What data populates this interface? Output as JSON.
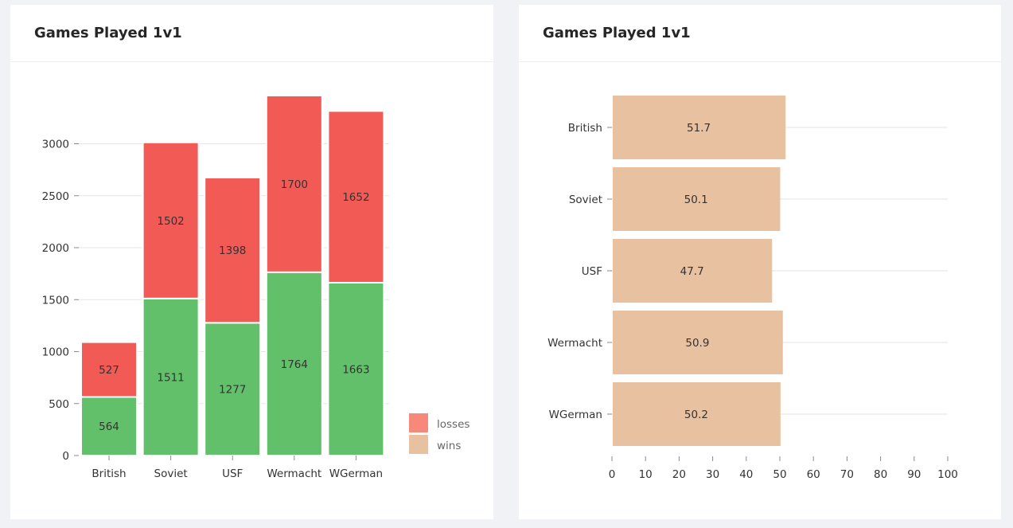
{
  "cards": [
    {
      "title": "Games Played 1v1"
    },
    {
      "title": "Games Played 1v1"
    }
  ],
  "chart_data": [
    {
      "type": "bar",
      "stacked": true,
      "title": "Games Played 1v1",
      "categories": [
        "British",
        "Soviet",
        "USF",
        "Wermacht",
        "WGerman"
      ],
      "series": [
        {
          "name": "wins",
          "values": [
            564,
            1511,
            1277,
            1764,
            1663
          ],
          "color": "#62c06a"
        },
        {
          "name": "losses",
          "values": [
            527,
            1502,
            1398,
            1700,
            1652
          ],
          "color": "#f25a56"
        }
      ],
      "yticks": [
        0,
        500,
        1000,
        1500,
        2000,
        2500,
        3000
      ],
      "legend": [
        {
          "name": "losses",
          "color": "#f7897b"
        },
        {
          "name": "wins",
          "color": "#e8c1a0"
        }
      ],
      "legend_position": "bottom-right",
      "grid": "horizontal",
      "xlabel": "",
      "ylabel": ""
    },
    {
      "type": "bar",
      "orientation": "horizontal",
      "title": "Games Played 1v1",
      "categories": [
        "British",
        "Soviet",
        "USF",
        "Wermacht",
        "WGerman"
      ],
      "values": [
        51.7,
        50.1,
        47.7,
        50.9,
        50.2
      ],
      "labels": [
        "51.7",
        "50.1",
        "47.7",
        "50.9",
        "50.2"
      ],
      "color": "#e8c1a0",
      "xlim": [
        0,
        100
      ],
      "xticks": [
        0,
        10,
        20,
        30,
        40,
        50,
        60,
        70,
        80,
        90,
        100
      ],
      "grid": "horizontal",
      "xlabel": "",
      "ylabel": ""
    }
  ]
}
